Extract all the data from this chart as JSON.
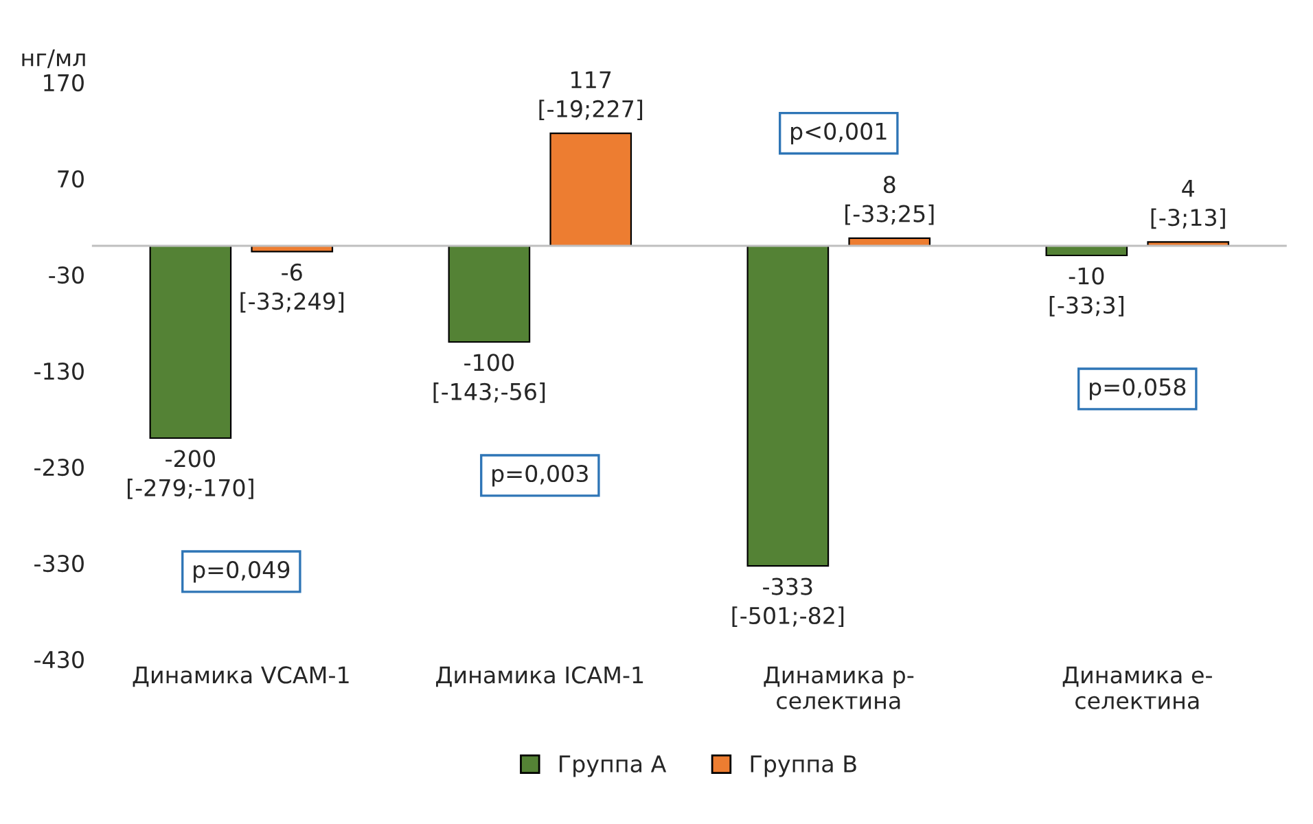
{
  "chart_data": {
    "type": "bar",
    "ylabel": "нг/мл",
    "categories": [
      "Динамика VCAM-1",
      "Динамика ICAM-1",
      "Динамика p-\nселектина",
      "Динамика e-\nселектина"
    ],
    "series": [
      {
        "name": "Группа А",
        "color": "#548235",
        "values": [
          -200,
          -100,
          -333,
          -10
        ],
        "value_labels": [
          "-200\n[-279;-170]",
          "-100\n[-143;-56]",
          "-333\n[-501;-82]",
          "-10\n[-33;3]"
        ]
      },
      {
        "name": "Группа В",
        "color": "#ed7d31",
        "values": [
          -6,
          117,
          8,
          4
        ],
        "value_labels": [
          "-6\n[-33;249]",
          "117\n[-19;227]",
          "8\n[-33;25]",
          "4\n[-3;13]"
        ]
      }
    ],
    "annotations": [
      "p=0,049",
      "p=0,003",
      "p<0,001",
      "p=0,058"
    ],
    "ylim": [
      -430,
      170
    ],
    "yticks": [
      170,
      70,
      -30,
      -130,
      -230,
      -330,
      -430
    ],
    "grid": false,
    "legend": "bottom"
  }
}
